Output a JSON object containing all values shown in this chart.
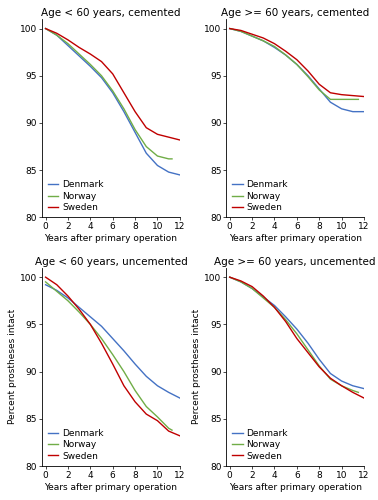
{
  "colors": {
    "denmark": "#4472C4",
    "norway": "#70AD47",
    "sweden": "#C00000"
  },
  "panels": [
    {
      "title": "Age < 60 years, cemented",
      "has_ylabel": false,
      "ylim": [
        80,
        101
      ],
      "yticks": [
        80,
        85,
        90,
        95,
        100
      ],
      "xlim": [
        -0.3,
        12
      ],
      "xticks": [
        0,
        2,
        4,
        6,
        8,
        10,
        12
      ],
      "denmark_x": [
        0,
        1,
        2,
        3,
        4,
        5,
        6,
        7,
        8,
        9,
        10,
        11,
        12
      ],
      "denmark_y": [
        100,
        99.3,
        98.2,
        97.1,
        96.0,
        94.8,
        93.2,
        91.2,
        89.0,
        86.8,
        85.5,
        84.8,
        84.5
      ],
      "norway_x": [
        0,
        1,
        2,
        3,
        4,
        5,
        6,
        7,
        8,
        9,
        10,
        11,
        11.3
      ],
      "norway_y": [
        100,
        99.3,
        98.4,
        97.3,
        96.2,
        95.0,
        93.4,
        91.5,
        89.3,
        87.5,
        86.5,
        86.2,
        86.2
      ],
      "sweden_x": [
        0,
        1,
        2,
        3,
        4,
        5,
        6,
        7,
        8,
        9,
        10,
        11,
        12
      ],
      "sweden_y": [
        100,
        99.5,
        98.8,
        98.0,
        97.3,
        96.5,
        95.2,
        93.2,
        91.2,
        89.5,
        88.8,
        88.5,
        88.2
      ]
    },
    {
      "title": "Age >= 60 years, cemented",
      "has_ylabel": false,
      "ylim": [
        80,
        101
      ],
      "yticks": [
        80,
        85,
        90,
        95,
        100
      ],
      "xlim": [
        -0.3,
        12
      ],
      "xticks": [
        0,
        2,
        4,
        6,
        8,
        10,
        12
      ],
      "denmark_x": [
        0,
        1,
        2,
        3,
        4,
        5,
        6,
        7,
        8,
        9,
        10,
        11,
        12
      ],
      "denmark_y": [
        100,
        99.7,
        99.2,
        98.7,
        98.0,
        97.2,
        96.2,
        95.0,
        93.6,
        92.2,
        91.5,
        91.2,
        91.2
      ],
      "norway_x": [
        0,
        1,
        2,
        3,
        4,
        5,
        6,
        7,
        8,
        9,
        10,
        11,
        11.5
      ],
      "norway_y": [
        100,
        99.7,
        99.2,
        98.7,
        98.1,
        97.2,
        96.2,
        94.9,
        93.5,
        92.5,
        92.5,
        92.5,
        92.5
      ],
      "sweden_x": [
        0,
        1,
        2,
        3,
        4,
        5,
        6,
        7,
        8,
        9,
        10,
        11,
        12
      ],
      "sweden_y": [
        100,
        99.8,
        99.4,
        99.0,
        98.4,
        97.6,
        96.7,
        95.5,
        94.1,
        93.2,
        93.0,
        92.9,
        92.8
      ]
    },
    {
      "title": "Age < 60 years, uncemented",
      "has_ylabel": true,
      "ylim": [
        80,
        101
      ],
      "yticks": [
        80,
        85,
        90,
        95,
        100
      ],
      "xlim": [
        -0.3,
        12
      ],
      "xticks": [
        0,
        2,
        4,
        6,
        8,
        10,
        12
      ],
      "denmark_x": [
        0,
        1,
        2,
        3,
        4,
        5,
        6,
        7,
        8,
        9,
        10,
        11,
        12
      ],
      "denmark_y": [
        99.2,
        98.6,
        97.8,
        96.8,
        95.8,
        94.8,
        93.5,
        92.2,
        90.8,
        89.5,
        88.5,
        87.8,
        87.2
      ],
      "norway_x": [
        0,
        1,
        2,
        3,
        4,
        5,
        6,
        7,
        8,
        9,
        10,
        11,
        11.3
      ],
      "norway_y": [
        99.5,
        98.5,
        97.5,
        96.3,
        95.0,
        93.5,
        91.8,
        90.0,
        88.0,
        86.3,
        85.2,
        84.0,
        83.8
      ],
      "sweden_x": [
        0,
        1,
        2,
        3,
        4,
        5,
        6,
        7,
        8,
        9,
        10,
        11,
        12
      ],
      "sweden_y": [
        100,
        99.2,
        98.0,
        96.6,
        95.0,
        93.0,
        90.8,
        88.5,
        86.8,
        85.5,
        84.8,
        83.7,
        83.2
      ]
    },
    {
      "title": "Age >= 60 years, uncemented",
      "has_ylabel": true,
      "ylim": [
        80,
        101
      ],
      "yticks": [
        80,
        85,
        90,
        95,
        100
      ],
      "xlim": [
        -0.3,
        12
      ],
      "xticks": [
        0,
        2,
        4,
        6,
        8,
        10,
        12
      ],
      "denmark_x": [
        0,
        1,
        2,
        3,
        4,
        5,
        6,
        7,
        8,
        9,
        10,
        11,
        12
      ],
      "denmark_y": [
        100,
        99.5,
        98.8,
        97.9,
        97.0,
        95.8,
        94.5,
        93.0,
        91.3,
        89.8,
        89.0,
        88.5,
        88.2
      ],
      "norway_x": [
        0,
        1,
        2,
        3,
        4,
        5,
        6,
        7,
        8,
        9,
        10,
        11,
        11.5
      ],
      "norway_y": [
        100,
        99.5,
        98.8,
        97.8,
        96.8,
        95.5,
        94.0,
        92.3,
        90.6,
        89.2,
        88.5,
        88.0,
        87.8
      ],
      "sweden_x": [
        0,
        1,
        2,
        3,
        4,
        5,
        6,
        7,
        8,
        9,
        10,
        11,
        12
      ],
      "sweden_y": [
        100,
        99.6,
        99.0,
        98.0,
        96.8,
        95.3,
        93.5,
        92.0,
        90.5,
        89.3,
        88.5,
        87.8,
        87.2
      ]
    }
  ],
  "xlabel": "Years after primary operation",
  "ylabel": "Percent prostheses intact",
  "legend_labels": [
    "Denmark",
    "Norway",
    "Sweden"
  ],
  "linewidth": 1.0,
  "title_fontsize": 7.5,
  "label_fontsize": 6.5,
  "tick_fontsize": 6.5,
  "legend_fontsize": 6.5
}
